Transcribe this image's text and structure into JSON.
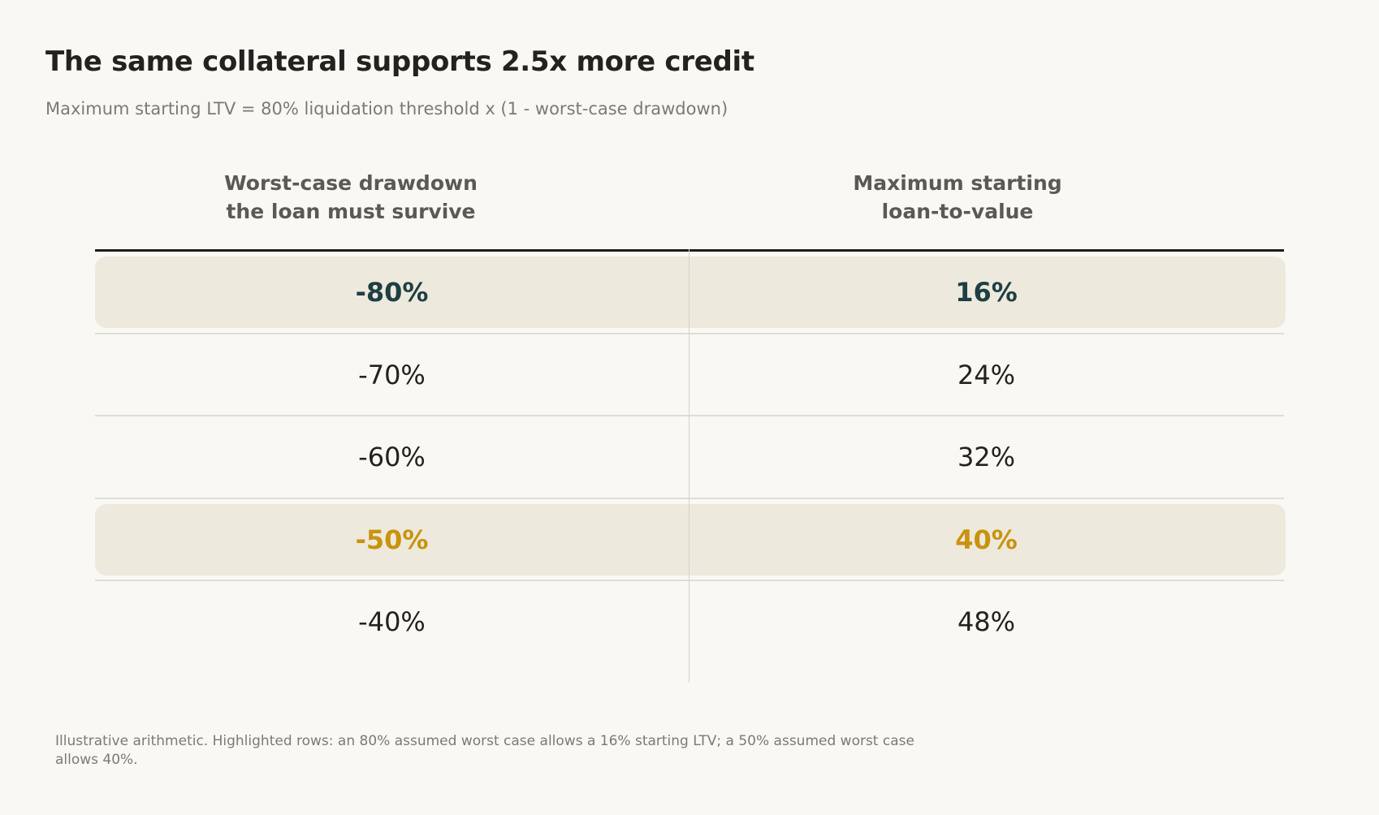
{
  "title": "The same collateral supports 2.5x more credit",
  "subtitle": "Maximum starting LTV = 80% liquidation threshold x (1 - worst-case drawdown)",
  "footnote": "Illustrative arithmetic. Highlighted rows: an 80% assumed worst case allows a 16% starting LTV; a 50% assumed worst case allows 40%.",
  "colors": {
    "background": "#f9f8f4",
    "highlight_bg": "#ede9dd",
    "accent_teal": "#1e3f43",
    "accent_gold": "#c9930d"
  },
  "chart_data": {
    "type": "table",
    "columns": [
      {
        "lines": [
          "Worst-case drawdown",
          "the loan must survive"
        ]
      },
      {
        "lines": [
          "Maximum starting",
          "loan-to-value"
        ]
      }
    ],
    "rows": [
      {
        "drawdown": "-80%",
        "ltv": "16%",
        "highlight": "teal"
      },
      {
        "drawdown": "-70%",
        "ltv": "24%",
        "highlight": null
      },
      {
        "drawdown": "-60%",
        "ltv": "32%",
        "highlight": null
      },
      {
        "drawdown": "-50%",
        "ltv": "40%",
        "highlight": "gold"
      },
      {
        "drawdown": "-40%",
        "ltv": "48%",
        "highlight": null
      }
    ]
  }
}
